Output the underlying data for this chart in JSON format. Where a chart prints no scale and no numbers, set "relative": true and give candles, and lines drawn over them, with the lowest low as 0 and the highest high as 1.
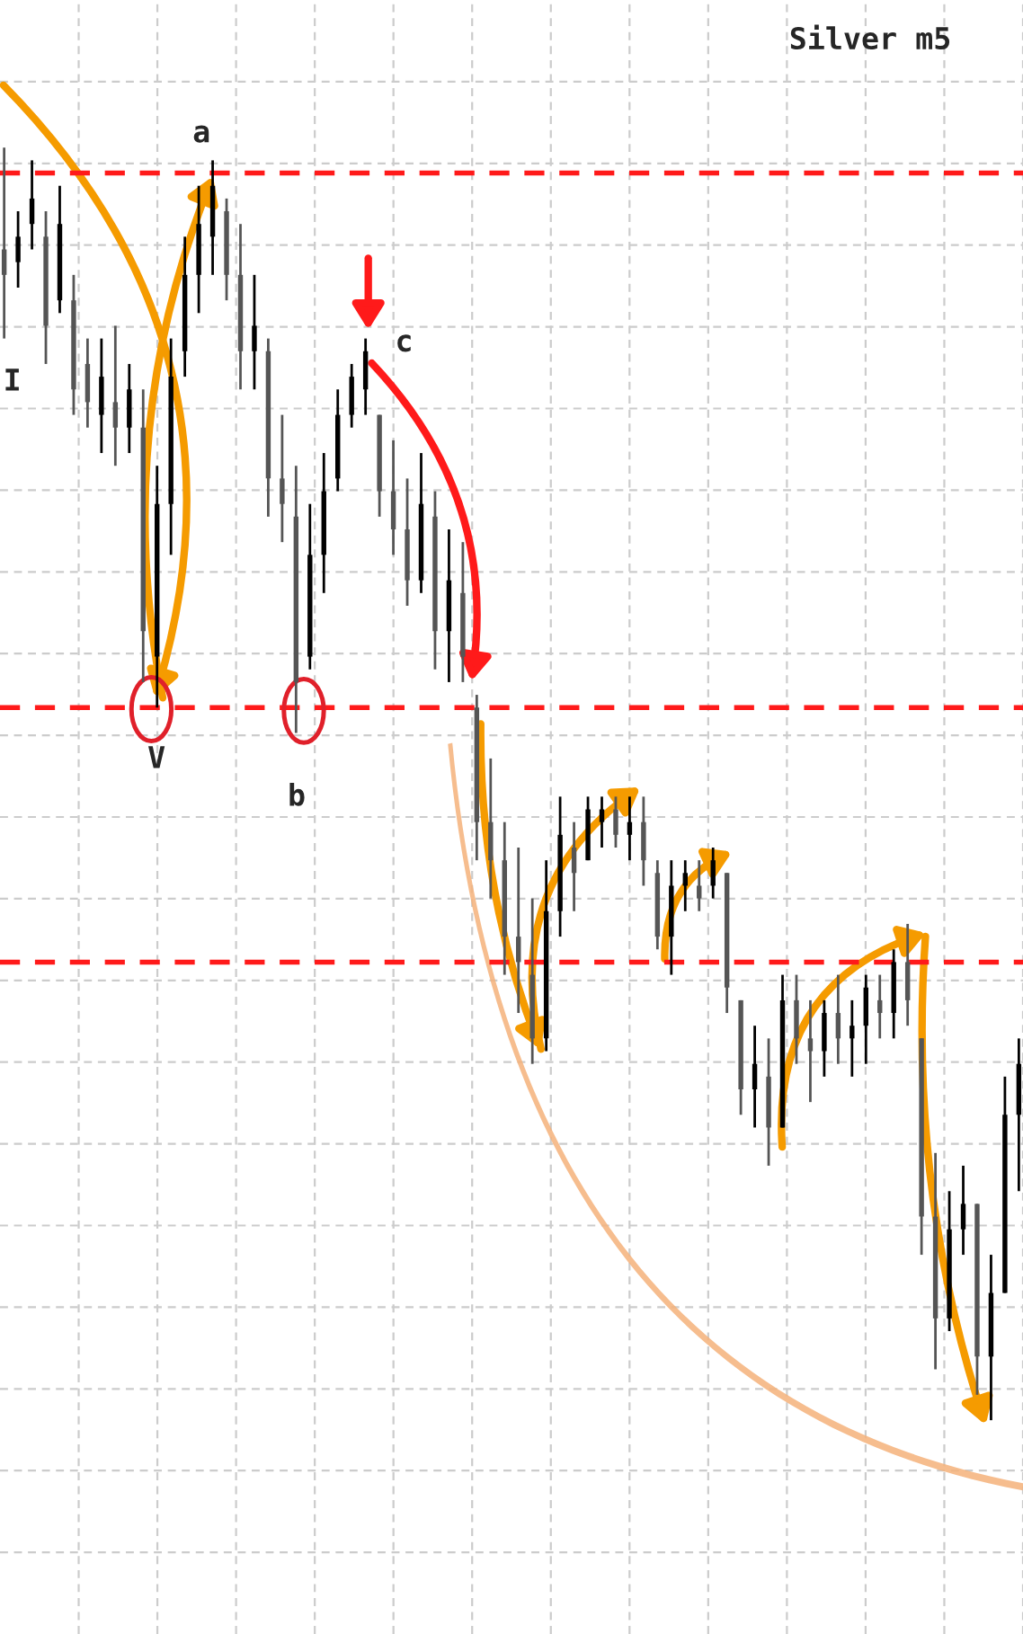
{
  "chart_data": {
    "type": "candlestick",
    "relative": true,
    "grid": true,
    "categories": [
      null,
      null,
      null,
      null,
      null,
      null,
      null,
      null,
      null,
      null,
      null,
      null,
      null,
      null,
      null,
      null,
      null,
      null,
      null,
      null,
      null,
      null,
      null,
      null,
      null,
      null,
      null,
      null,
      null,
      null,
      null,
      null,
      null,
      null,
      null,
      null,
      null,
      null,
      null,
      null,
      null,
      null,
      null,
      null,
      null,
      null,
      null,
      null,
      null,
      null,
      null,
      null,
      null,
      null,
      null,
      null,
      null,
      null,
      null,
      null,
      null,
      null,
      null,
      null,
      null,
      null,
      null,
      null,
      null,
      null,
      null,
      null,
      null,
      null
    ],
    "ohlc": [
      [
        0.92,
        1.0,
        0.85,
        0.9
      ],
      [
        0.91,
        0.95,
        0.89,
        0.93
      ],
      [
        0.94,
        0.99,
        0.92,
        0.96
      ],
      [
        0.93,
        0.95,
        0.83,
        0.86
      ],
      [
        0.88,
        0.97,
        0.87,
        0.94
      ],
      [
        0.88,
        0.9,
        0.79,
        0.81
      ],
      [
        0.83,
        0.85,
        0.78,
        0.8
      ],
      [
        0.79,
        0.85,
        0.76,
        0.82
      ],
      [
        0.8,
        0.86,
        0.75,
        0.78
      ],
      [
        0.78,
        0.83,
        0.76,
        0.81
      ],
      [
        0.78,
        0.81,
        0.58,
        0.62
      ],
      [
        0.6,
        0.75,
        0.56,
        0.72
      ],
      [
        0.72,
        0.85,
        0.68,
        0.82
      ],
      [
        0.84,
        0.93,
        0.82,
        0.9
      ],
      [
        0.9,
        0.97,
        0.87,
        0.94
      ],
      [
        0.93,
        0.99,
        0.9,
        0.97
      ],
      [
        0.95,
        0.96,
        0.88,
        0.9
      ],
      [
        0.9,
        0.94,
        0.81,
        0.84
      ],
      [
        0.84,
        0.9,
        0.81,
        0.86
      ],
      [
        0.84,
        0.85,
        0.71,
        0.74
      ],
      [
        0.74,
        0.79,
        0.69,
        0.72
      ],
      [
        0.71,
        0.75,
        0.54,
        0.58
      ],
      [
        0.6,
        0.72,
        0.59,
        0.68
      ],
      [
        0.68,
        0.76,
        0.65,
        0.73
      ],
      [
        0.74,
        0.81,
        0.73,
        0.79
      ],
      [
        0.79,
        0.83,
        0.78,
        0.82
      ],
      [
        0.81,
        0.85,
        0.79,
        0.84
      ],
      [
        0.79,
        0.79,
        0.71,
        0.73
      ],
      [
        0.73,
        0.77,
        0.68,
        0.7
      ],
      [
        0.7,
        0.74,
        0.64,
        0.66
      ],
      [
        0.66,
        0.76,
        0.65,
        0.72
      ],
      [
        0.71,
        0.73,
        0.59,
        0.62
      ],
      [
        0.62,
        0.7,
        0.58,
        0.66
      ],
      [
        0.65,
        0.69,
        0.58,
        0.6
      ],
      [
        0.56,
        0.57,
        0.44,
        0.47
      ],
      [
        0.47,
        0.52,
        0.41,
        0.44
      ],
      [
        0.44,
        0.47,
        0.35,
        0.38
      ],
      [
        0.38,
        0.45,
        0.32,
        0.36
      ],
      [
        0.35,
        0.41,
        0.28,
        0.3
      ],
      [
        0.3,
        0.44,
        0.29,
        0.4
      ],
      [
        0.4,
        0.49,
        0.38,
        0.46
      ],
      [
        0.45,
        0.47,
        0.4,
        0.43
      ],
      [
        0.44,
        0.49,
        0.44,
        0.48
      ],
      [
        0.47,
        0.49,
        0.45,
        0.48
      ],
      [
        0.48,
        0.49,
        0.45,
        0.46
      ],
      [
        0.46,
        0.49,
        0.44,
        0.47
      ],
      [
        0.47,
        0.49,
        0.42,
        0.44
      ],
      [
        0.43,
        0.44,
        0.37,
        0.38
      ],
      [
        0.38,
        0.44,
        0.35,
        0.42
      ],
      [
        0.42,
        0.44,
        0.4,
        0.43
      ],
      [
        0.42,
        0.44,
        0.4,
        0.41
      ],
      [
        0.42,
        0.45,
        0.41,
        0.44
      ],
      [
        0.43,
        0.43,
        0.32,
        0.34
      ],
      [
        0.33,
        0.33,
        0.24,
        0.26
      ],
      [
        0.26,
        0.31,
        0.23,
        0.28
      ],
      [
        0.27,
        0.3,
        0.2,
        0.23
      ],
      [
        0.23,
        0.35,
        0.23,
        0.33
      ],
      [
        0.33,
        0.35,
        0.28,
        0.3
      ],
      [
        0.3,
        0.33,
        0.25,
        0.29
      ],
      [
        0.29,
        0.33,
        0.27,
        0.32
      ],
      [
        0.32,
        0.35,
        0.28,
        0.3
      ],
      [
        0.3,
        0.33,
        0.27,
        0.31
      ],
      [
        0.31,
        0.35,
        0.28,
        0.34
      ],
      [
        0.33,
        0.35,
        0.3,
        0.32
      ],
      [
        0.32,
        0.37,
        0.3,
        0.36
      ],
      [
        0.36,
        0.39,
        0.31,
        0.33
      ],
      [
        0.3,
        0.3,
        0.13,
        0.16
      ],
      [
        0.16,
        0.21,
        0.04,
        0.08
      ],
      [
        0.08,
        0.18,
        0.07,
        0.15
      ],
      [
        0.15,
        0.2,
        0.13,
        0.17
      ],
      [
        0.17,
        0.17,
        0.02,
        0.05
      ],
      [
        0.05,
        0.13,
        0.0,
        0.1
      ],
      [
        0.1,
        0.27,
        0.1,
        0.24
      ],
      [
        0.24,
        0.3,
        0.18,
        0.28
      ]
    ],
    "ref_lines": [
      {
        "axis": "y",
        "value": 0.98,
        "color": "#ff1a1a",
        "line_style": "dashed"
      },
      {
        "axis": "y",
        "value": 0.56,
        "color": "#ff1a1a",
        "line_style": "dashed"
      },
      {
        "axis": "y",
        "value": 0.36,
        "color": "#ff1a1a",
        "line_style": "dashed"
      }
    ],
    "title": "Silver m5",
    "annotations": [
      "a",
      "V",
      "b",
      "c",
      "I"
    ]
  }
}
